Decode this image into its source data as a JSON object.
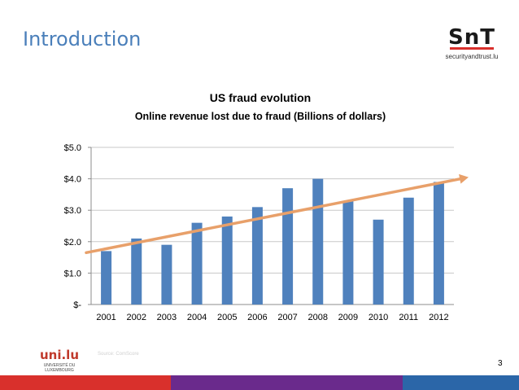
{
  "slide": {
    "title": "Introduction",
    "page_number": "3",
    "faint_text": "Source: ComScore"
  },
  "logos": {
    "snt_mark": "SnT",
    "snt_url": "securityandtrust.lu",
    "uni_mark": "uni.lu",
    "uni_line1": "UNIVERSITÉ DU",
    "uni_line2": "LUXEMBOURG"
  },
  "colors": {
    "title": "#4a7fba",
    "bar": "#4f81bd",
    "trend": "#e8a06a",
    "footer": [
      "#d9302c",
      "#6a2a8c",
      "#6a2a8c",
      "#2b66a8"
    ]
  },
  "chart_data": {
    "type": "bar",
    "title": "US fraud evolution",
    "subtitle": "Online revenue lost due to fraud (Billions of dollars)",
    "categories": [
      "2001",
      "2002",
      "2003",
      "2004",
      "2005",
      "2006",
      "2007",
      "2008",
      "2009",
      "2010",
      "2011",
      "2012"
    ],
    "values": [
      1.7,
      2.1,
      1.9,
      2.6,
      2.8,
      3.1,
      3.7,
      4.0,
      3.3,
      2.7,
      3.4,
      3.9
    ],
    "ylim": [
      0,
      5
    ],
    "yticks": [
      {
        "value": 0,
        "label": "$-"
      },
      {
        "value": 1,
        "label": "$1.0"
      },
      {
        "value": 2,
        "label": "$2.0"
      },
      {
        "value": 3,
        "label": "$3.0"
      },
      {
        "value": 4,
        "label": "$4.0"
      },
      {
        "value": 5,
        "label": "$5.0"
      }
    ],
    "grid": true,
    "trendline": {
      "start_value": 1.65,
      "end_value": 4.05
    }
  }
}
